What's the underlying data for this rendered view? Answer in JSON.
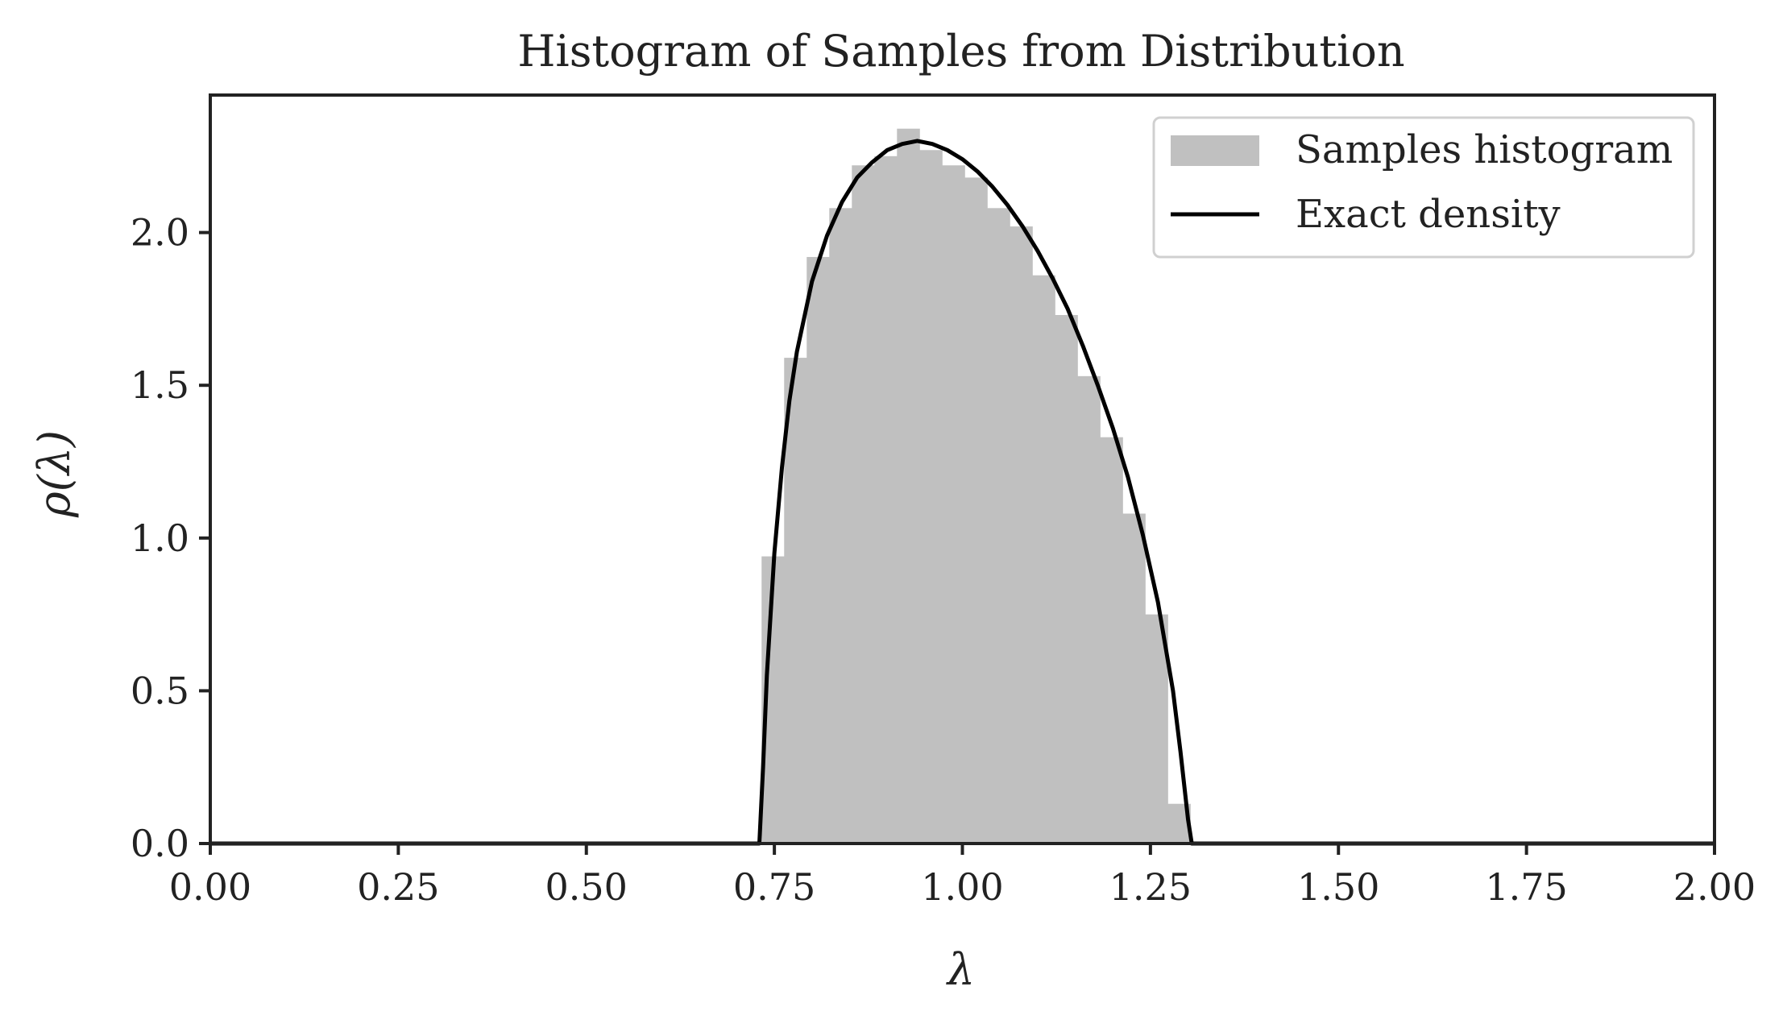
{
  "chart_data": {
    "type": "bar",
    "title": "Histogram of Samples from Distribution",
    "xlabel": "λ",
    "ylabel": "ρ(λ)",
    "xlim": [
      0.0,
      2.0
    ],
    "ylim": [
      0.0,
      2.45
    ],
    "xticks": [
      "0.00",
      "0.25",
      "0.50",
      "0.75",
      "1.00",
      "1.25",
      "1.50",
      "1.75",
      "2.00"
    ],
    "yticks": [
      "0.0",
      "0.5",
      "1.0",
      "1.5",
      "2.0"
    ],
    "grid": false,
    "legend_position": "top-right",
    "series": [
      {
        "name": "Samples histogram",
        "kind": "histogram",
        "color": "#c0c0c0",
        "bin_edges": [
          0.733,
          0.763,
          0.793,
          0.823,
          0.853,
          0.883,
          0.913,
          0.943,
          0.973,
          1.003,
          1.033,
          1.063,
          1.093,
          1.123,
          1.153,
          1.183,
          1.213,
          1.243,
          1.273,
          1.303,
          1.333
        ],
        "values": [
          0.94,
          1.59,
          1.92,
          2.08,
          2.22,
          2.25,
          2.34,
          2.27,
          2.22,
          2.18,
          2.08,
          2.02,
          1.86,
          1.73,
          1.53,
          1.33,
          1.08,
          0.75,
          0.13,
          0.0
        ]
      },
      {
        "name": "Exact density",
        "kind": "line",
        "color": "#000000",
        "x": [
          0.0,
          0.73,
          0.735,
          0.74,
          0.75,
          0.76,
          0.77,
          0.78,
          0.8,
          0.82,
          0.84,
          0.86,
          0.88,
          0.9,
          0.92,
          0.94,
          0.96,
          0.98,
          1.0,
          1.02,
          1.04,
          1.06,
          1.08,
          1.1,
          1.12,
          1.14,
          1.16,
          1.18,
          1.2,
          1.22,
          1.24,
          1.26,
          1.28,
          1.29,
          1.3,
          1.305,
          2.0
        ],
        "y": [
          0.0,
          0.0,
          0.25,
          0.55,
          0.95,
          1.23,
          1.45,
          1.61,
          1.84,
          1.99,
          2.1,
          2.18,
          2.23,
          2.27,
          2.29,
          2.3,
          2.29,
          2.27,
          2.24,
          2.2,
          2.15,
          2.09,
          2.02,
          1.94,
          1.85,
          1.75,
          1.63,
          1.5,
          1.36,
          1.2,
          1.01,
          0.79,
          0.5,
          0.3,
          0.08,
          0.0,
          0.0
        ]
      }
    ]
  }
}
